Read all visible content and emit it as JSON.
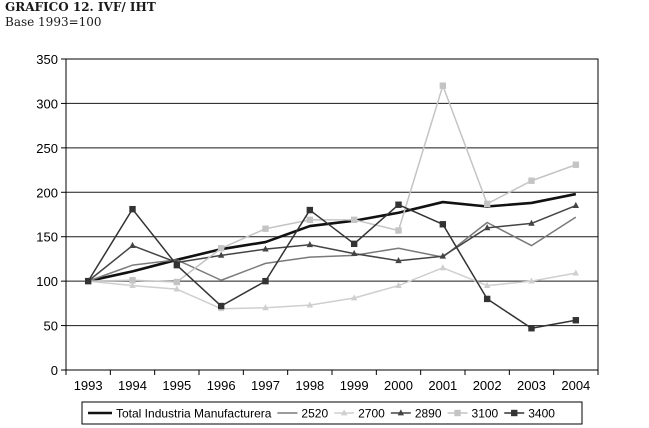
{
  "header": {
    "title": "GRAFICO 12. IVF/ IHT",
    "subtitle": "Base 1993=100"
  },
  "chart_data": {
    "type": "line",
    "title": "GRAFICO 12. IVF/ IHT",
    "subtitle": "Base 1993=100",
    "xlabel": "",
    "ylabel": "",
    "ylim": [
      0,
      350
    ],
    "yticks": [
      0,
      50,
      100,
      150,
      200,
      250,
      300,
      350
    ],
    "grid": "horizontal",
    "legend_position": "bottom",
    "categories": [
      "1993",
      "1994",
      "1995",
      "1996",
      "1997",
      "1998",
      "1999",
      "2000",
      "2001",
      "2002",
      "2003",
      "2004"
    ],
    "series": [
      {
        "name": "Total Industria Manufacturera",
        "marker": "none",
        "color": "#111111",
        "values": [
          100,
          111,
          124,
          136,
          144,
          162,
          168,
          177,
          189,
          184,
          188,
          198
        ]
      },
      {
        "name": "2520",
        "marker": "none",
        "color": "#7a7a7a",
        "values": [
          100,
          118,
          124,
          101,
          120,
          127,
          129,
          137,
          127,
          166,
          140,
          172
        ]
      },
      {
        "name": "2700",
        "marker": "triangle",
        "color": "#cfcfcf",
        "values": [
          100,
          95,
          91,
          69,
          70,
          73,
          81,
          95,
          115,
          95,
          100,
          109
        ]
      },
      {
        "name": "2890",
        "marker": "triangle",
        "color": "#444444",
        "values": [
          100,
          140,
          121,
          129,
          136,
          141,
          131,
          123,
          128,
          160,
          165,
          185
        ]
      },
      {
        "name": "3100",
        "marker": "square",
        "color": "#c4c4c4",
        "values": [
          100,
          101,
          99,
          137,
          159,
          169,
          169,
          157,
          320,
          187,
          213,
          231
        ]
      },
      {
        "name": "3400",
        "marker": "square",
        "color": "#333333",
        "values": [
          100,
          181,
          118,
          72,
          100,
          180,
          142,
          186,
          164,
          80,
          47,
          56
        ]
      }
    ]
  }
}
